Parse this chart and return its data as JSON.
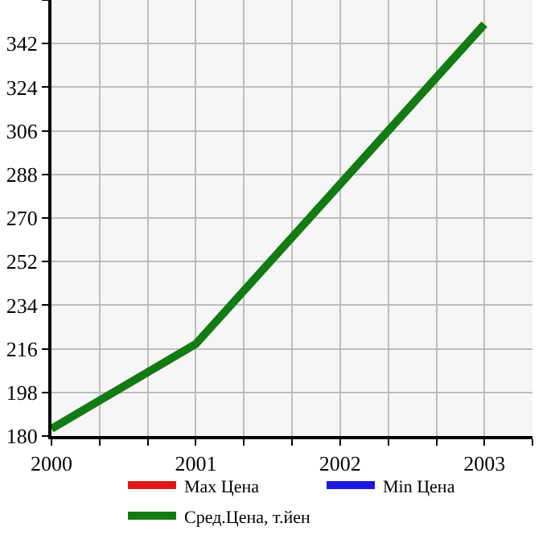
{
  "chart_data": {
    "type": "line",
    "x": [
      2000,
      2001,
      2002,
      2003
    ],
    "series": [
      {
        "name": "Max Цена",
        "color": "#dd1a1a",
        "values": [
          null,
          null,
          null,
          null
        ]
      },
      {
        "name": "Min Цена",
        "color": "#1a1add",
        "values": [
          null,
          null,
          null,
          null
        ]
      },
      {
        "name": "Сред.Цена, т.йен",
        "color": "#137b13",
        "values": [
          183,
          218,
          284,
          350
        ]
      }
    ],
    "xlim": [
      2000,
      2003.333
    ],
    "xticks": [
      2000,
      {
        "value": 2000.333,
        "label": null
      },
      {
        "value": 2000.667,
        "label": null
      },
      2001,
      {
        "value": 2001.333,
        "label": null
      },
      {
        "value": 2001.667,
        "label": null
      },
      2002,
      {
        "value": 2002.333,
        "label": null
      },
      {
        "value": 2002.667,
        "label": null
      },
      2003,
      {
        "value": 2003.333,
        "label": null
      }
    ],
    "ylim": [
      180,
      360
    ],
    "yticks": [
      180,
      198,
      216,
      234,
      252,
      270,
      288,
      306,
      324,
      342,
      {
        "value": 360,
        "label": null
      }
    ],
    "grid": true,
    "legend": "bottom",
    "marker": "none",
    "line_style": "solid"
  }
}
